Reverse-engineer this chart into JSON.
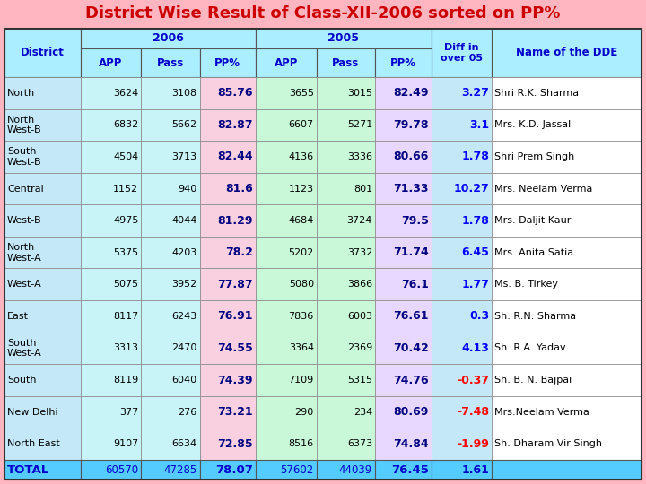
{
  "title": "District Wise Result of Class-XII-2006 sorted on PP%",
  "title_color": "#CC0000",
  "title_bg": "#FFB6C1",
  "header_bg": "#AAEEFF",
  "col_header_color": "#0000CC",
  "odd_row_bg": "#FFFFFF",
  "even_row_bg": "#CCFFCC",
  "total_row_bg": "#55CCFF",
  "total_text_color": "#0000CC",
  "diff_color_pos": "#0000FF",
  "diff_color_neg": "#FF0000",
  "col1_bg": "#AADDFF",
  "col2_bg": "#CCFFEE",
  "col3_bg": "#FFCCEE",
  "col4_bg": "#CCFFEE",
  "rows": [
    [
      "North",
      "3624",
      "3108",
      "85.76",
      "3655",
      "3015",
      "82.49",
      "3.27",
      "Shri R.K. Sharma"
    ],
    [
      "North\nWest-B",
      "6832",
      "5662",
      "82.87",
      "6607",
      "5271",
      "79.78",
      "3.1",
      "Mrs. K.D. Jassal"
    ],
    [
      "South\nWest-B",
      "4504",
      "3713",
      "82.44",
      "4136",
      "3336",
      "80.66",
      "1.78",
      "Shri Prem Singh"
    ],
    [
      "Central",
      "1152",
      "940",
      "81.6",
      "1123",
      "801",
      "71.33",
      "10.27",
      "Mrs. Neelam Verma"
    ],
    [
      "West-B",
      "4975",
      "4044",
      "81.29",
      "4684",
      "3724",
      "79.5",
      "1.78",
      "Mrs. Daljit Kaur"
    ],
    [
      "North\nWest-A",
      "5375",
      "4203",
      "78.2",
      "5202",
      "3732",
      "71.74",
      "6.45",
      "Mrs. Anita Satia"
    ],
    [
      "West-A",
      "5075",
      "3952",
      "77.87",
      "5080",
      "3866",
      "76.1",
      "1.77",
      "Ms. B. Tirkey"
    ],
    [
      "East",
      "8117",
      "6243",
      "76.91",
      "7836",
      "6003",
      "76.61",
      "0.3",
      "Sh. R.N. Sharma"
    ],
    [
      "South\nWest-A",
      "3313",
      "2470",
      "74.55",
      "3364",
      "2369",
      "70.42",
      "4.13",
      "Sh. R.A. Yadav"
    ],
    [
      "South",
      "8119",
      "6040",
      "74.39",
      "7109",
      "5315",
      "74.76",
      "-0.37",
      "Sh. B. N. Bajpai"
    ],
    [
      "New Delhi",
      "377",
      "276",
      "73.21",
      "290",
      "234",
      "80.69",
      "-7.48",
      "Mrs.Neelam Verma"
    ],
    [
      "North East",
      "9107",
      "6634",
      "72.85",
      "8516",
      "6373",
      "74.84",
      "-1.99",
      "Sh. Dharam Vir Singh"
    ]
  ],
  "total_row": [
    "TOTAL",
    "60570",
    "47285",
    "78.07",
    "57602",
    "44039",
    "76.45",
    "1.61",
    ""
  ]
}
